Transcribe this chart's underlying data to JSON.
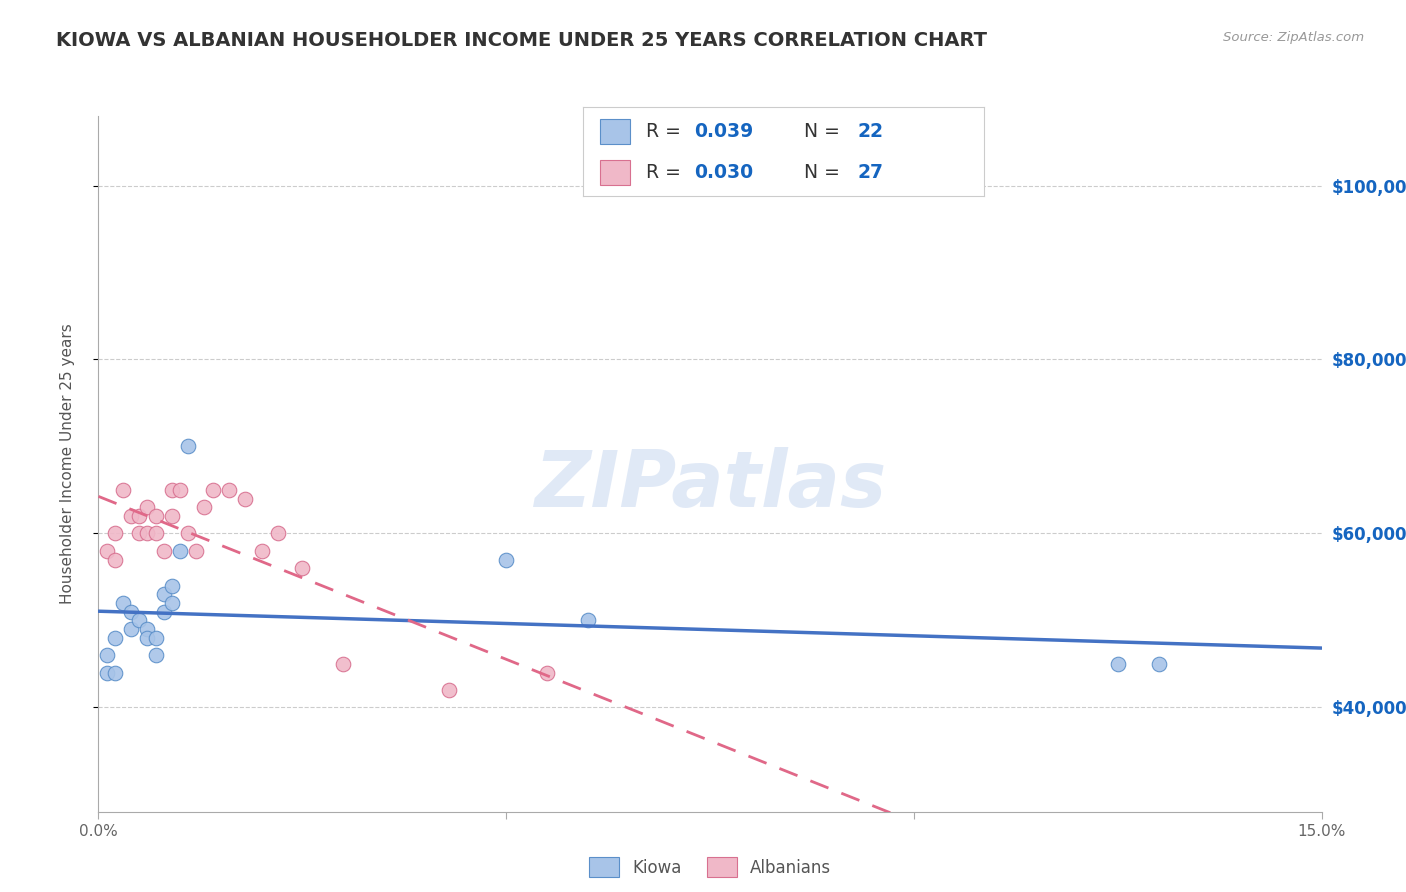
{
  "title": "KIOWA VS ALBANIAN HOUSEHOLDER INCOME UNDER 25 YEARS CORRELATION CHART",
  "source_text": "Source: ZipAtlas.com",
  "ylabel": "Householder Income Under 25 years",
  "xlim": [
    0.0,
    0.15
  ],
  "ylim": [
    28000,
    108000
  ],
  "yticks": [
    40000,
    60000,
    80000,
    100000
  ],
  "ytick_labels": [
    "$40,000",
    "$60,000",
    "$80,000",
    "$100,000"
  ],
  "xticks": [
    0.0,
    0.05,
    0.1,
    0.15
  ],
  "xtick_labels": [
    "0.0%",
    "",
    "",
    "15.0%"
  ],
  "watermark": "ZIPatlas",
  "kiowa_scatter_x": [
    0.001,
    0.001,
    0.002,
    0.002,
    0.003,
    0.004,
    0.004,
    0.005,
    0.006,
    0.006,
    0.007,
    0.007,
    0.008,
    0.008,
    0.009,
    0.009,
    0.01,
    0.011,
    0.05,
    0.06,
    0.125,
    0.13
  ],
  "kiowa_scatter_y": [
    46000,
    44000,
    48000,
    44000,
    52000,
    51000,
    49000,
    50000,
    49000,
    48000,
    48000,
    46000,
    53000,
    51000,
    54000,
    52000,
    58000,
    70000,
    57000,
    50000,
    45000,
    45000
  ],
  "albanian_scatter_x": [
    0.001,
    0.002,
    0.002,
    0.003,
    0.004,
    0.005,
    0.005,
    0.006,
    0.006,
    0.007,
    0.007,
    0.008,
    0.009,
    0.009,
    0.01,
    0.011,
    0.012,
    0.013,
    0.014,
    0.016,
    0.018,
    0.02,
    0.022,
    0.025,
    0.03,
    0.043,
    0.055
  ],
  "albanian_scatter_y": [
    58000,
    60000,
    57000,
    65000,
    62000,
    62000,
    60000,
    63000,
    60000,
    62000,
    60000,
    58000,
    65000,
    62000,
    65000,
    60000,
    58000,
    63000,
    65000,
    65000,
    64000,
    58000,
    60000,
    56000,
    45000,
    42000,
    44000
  ],
  "kiowa_color": "#a8c4e8",
  "albanian_color": "#f0b8c8",
  "kiowa_edge_color": "#5b8fc9",
  "albanian_edge_color": "#d87090",
  "kiowa_line_color": "#4472c4",
  "albanian_line_color": "#e06888",
  "background_color": "#ffffff",
  "grid_color": "#cccccc",
  "right_ytick_color": "#1565c0",
  "title_fontsize": 14,
  "axis_label_fontsize": 11,
  "tick_fontsize": 11,
  "kiowa_R": "0.039",
  "kiowa_N": "22",
  "albanian_R": "0.030",
  "albanian_N": "27"
}
